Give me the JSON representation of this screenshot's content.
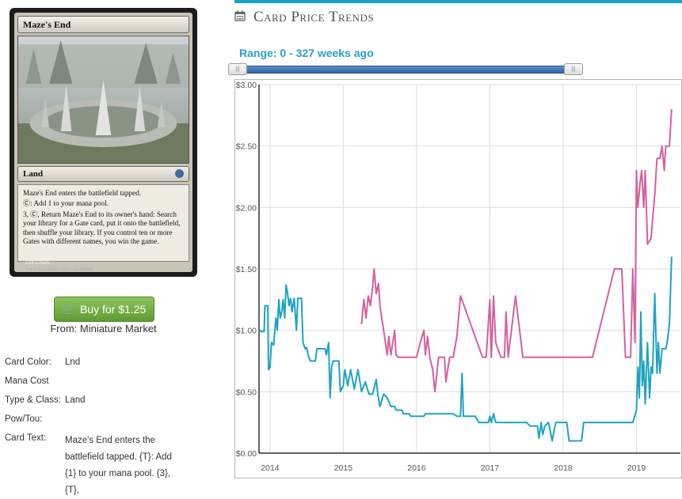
{
  "card": {
    "name": "Maze's End",
    "type_line": "Land",
    "text_lines": [
      "Maze's End enters the battlefield tapped.",
      "Ⓒ: Add 1 to your mana pool.",
      "3, Ⓒ, Return Maze's End to its owner's hand: Search your library for a Gate card, put it onto the battlefield, then shuffle your library. If you control ten or more Gates with different names, you win the game."
    ],
    "artist": "Cliff Childs",
    "copyright": "™ & © 2013 Wizards of the Coast 152/156"
  },
  "buy": {
    "label": "Buy for $1.25",
    "from": "From: Miniature Market"
  },
  "details": [
    {
      "label": "Card Color:",
      "value": "Lnd"
    },
    {
      "label": "Mana Cost",
      "value": ""
    },
    {
      "label": "Type & Class:",
      "value": "Land"
    },
    {
      "label": "Pow/Tou:",
      "value": ""
    },
    {
      "label": "Card Text:",
      "value": "Maze's End enters the battlefield tapped. {T}: Add {1} to your mana pool. {3}, {T},"
    }
  ],
  "panel": {
    "title": "Card Price Trends",
    "range_label": "Range: 0 - 327 weeks ago",
    "slider_left_grip": "|||",
    "slider_right_grip": "|||"
  },
  "colors": {
    "accent": "#19a5c9",
    "pink": "#d4619c",
    "blue": "#1fa3c2",
    "button": "#6fa942"
  },
  "chart_data": {
    "type": "line",
    "title": "",
    "xlabel": "",
    "ylabel": "",
    "xlim": [
      2013.85,
      2019.6
    ],
    "ylim": [
      0,
      3
    ],
    "x_ticks": [
      2014,
      2015,
      2016,
      2017,
      2018,
      2019
    ],
    "x_tick_labels": [
      "2014",
      "2015",
      "2016",
      "2017",
      "2018",
      "2019"
    ],
    "y_ticks": [
      0,
      0.5,
      1,
      1.5,
      2,
      2.5,
      3
    ],
    "y_tick_labels": [
      "$0.00",
      "$0.50",
      "$1.00",
      "$1.50",
      "$2.00",
      "$2.50",
      "$3.00"
    ],
    "grid": true,
    "series": [
      {
        "color": "#1fa3c2",
        "points": [
          [
            2013.86,
            1.0
          ],
          [
            2013.88,
            0.99
          ],
          [
            2013.92,
            0.99
          ],
          [
            2013.93,
            1.2
          ],
          [
            2013.97,
            1.2
          ],
          [
            2013.98,
            0.68
          ],
          [
            2014.0,
            0.7
          ],
          [
            2014.02,
            0.9
          ],
          [
            2014.05,
            0.88
          ],
          [
            2014.08,
            1.1
          ],
          [
            2014.1,
            1.0
          ],
          [
            2014.12,
            1.25
          ],
          [
            2014.14,
            1.1
          ],
          [
            2014.16,
            1.15
          ],
          [
            2014.18,
            1.25
          ],
          [
            2014.2,
            1.1
          ],
          [
            2014.22,
            1.37
          ],
          [
            2014.24,
            1.3
          ],
          [
            2014.26,
            1.2
          ],
          [
            2014.28,
            1.26
          ],
          [
            2014.3,
            1.15
          ],
          [
            2014.33,
            1.26
          ],
          [
            2014.36,
            1.0
          ],
          [
            2014.38,
            1.26
          ],
          [
            2014.43,
            1.26
          ],
          [
            2014.45,
            0.9
          ],
          [
            2014.48,
            0.85
          ],
          [
            2014.5,
            0.86
          ],
          [
            2014.52,
            0.8
          ],
          [
            2014.55,
            0.75
          ],
          [
            2014.62,
            0.75
          ],
          [
            2014.64,
            0.85
          ],
          [
            2014.75,
            0.85
          ],
          [
            2014.77,
            0.8
          ],
          [
            2014.8,
            0.9
          ],
          [
            2014.82,
            0.45
          ],
          [
            2014.84,
            0.7
          ],
          [
            2014.86,
            0.75
          ],
          [
            2014.94,
            0.75
          ],
          [
            2014.96,
            0.5
          ],
          [
            2015.0,
            0.55
          ],
          [
            2015.02,
            0.68
          ],
          [
            2015.06,
            0.55
          ],
          [
            2015.1,
            0.68
          ],
          [
            2015.15,
            0.52
          ],
          [
            2015.2,
            0.68
          ],
          [
            2015.25,
            0.5
          ],
          [
            2015.3,
            0.58
          ],
          [
            2015.35,
            0.48
          ],
          [
            2015.4,
            0.48
          ],
          [
            2015.45,
            0.6
          ],
          [
            2015.47,
            0.48
          ],
          [
            2015.5,
            0.38
          ],
          [
            2015.55,
            0.48
          ],
          [
            2015.6,
            0.45
          ],
          [
            2015.65,
            0.38
          ],
          [
            2015.7,
            0.38
          ],
          [
            2015.72,
            0.35
          ],
          [
            2015.8,
            0.35
          ],
          [
            2015.82,
            0.32
          ],
          [
            2015.9,
            0.32
          ],
          [
            2015.92,
            0.3
          ],
          [
            2016.1,
            0.3
          ],
          [
            2016.12,
            0.32
          ],
          [
            2016.5,
            0.32
          ],
          [
            2016.55,
            0.3
          ],
          [
            2016.6,
            0.3
          ],
          [
            2016.62,
            0.65
          ],
          [
            2016.64,
            0.3
          ],
          [
            2016.8,
            0.3
          ],
          [
            2016.85,
            0.25
          ],
          [
            2016.98,
            0.25
          ],
          [
            2017.0,
            0.3
          ],
          [
            2017.02,
            0.25
          ],
          [
            2017.05,
            0.32
          ],
          [
            2017.08,
            0.25
          ],
          [
            2017.5,
            0.25
          ],
          [
            2017.55,
            0.22
          ],
          [
            2017.65,
            0.22
          ],
          [
            2017.67,
            0.12
          ],
          [
            2017.7,
            0.25
          ],
          [
            2017.72,
            0.15
          ],
          [
            2017.75,
            0.22
          ],
          [
            2017.8,
            0.25
          ],
          [
            2017.85,
            0.1
          ],
          [
            2017.9,
            0.25
          ],
          [
            2018.05,
            0.25
          ],
          [
            2018.08,
            0.1
          ],
          [
            2018.25,
            0.1
          ],
          [
            2018.28,
            0.25
          ],
          [
            2018.95,
            0.25
          ],
          [
            2019.0,
            0.35
          ],
          [
            2019.02,
            0.7
          ],
          [
            2019.04,
            0.45
          ],
          [
            2019.06,
            1.15
          ],
          [
            2019.08,
            0.55
          ],
          [
            2019.1,
            0.75
          ],
          [
            2019.12,
            0.4
          ],
          [
            2019.15,
            0.9
          ],
          [
            2019.18,
            0.45
          ],
          [
            2019.2,
            0.7
          ],
          [
            2019.22,
            0.65
          ],
          [
            2019.25,
            1.3
          ],
          [
            2019.28,
            0.65
          ],
          [
            2019.3,
            0.9
          ],
          [
            2019.32,
            0.65
          ],
          [
            2019.35,
            0.85
          ],
          [
            2019.4,
            0.85
          ],
          [
            2019.42,
            0.9
          ],
          [
            2019.45,
            1.05
          ],
          [
            2019.48,
            1.6
          ]
        ]
      },
      {
        "color": "#d4619c",
        "points": [
          [
            2015.25,
            1.05
          ],
          [
            2015.28,
            1.25
          ],
          [
            2015.31,
            1.1
          ],
          [
            2015.34,
            1.28
          ],
          [
            2015.37,
            1.2
          ],
          [
            2015.4,
            1.35
          ],
          [
            2015.42,
            1.5
          ],
          [
            2015.45,
            1.3
          ],
          [
            2015.48,
            1.38
          ],
          [
            2015.5,
            1.2
          ],
          [
            2015.55,
            1.0
          ],
          [
            2015.6,
            0.8
          ],
          [
            2015.62,
            0.95
          ],
          [
            2015.65,
            0.8
          ],
          [
            2015.7,
            1.0
          ],
          [
            2015.72,
            0.8
          ],
          [
            2015.75,
            0.78
          ],
          [
            2016.0,
            0.78
          ],
          [
            2016.05,
            0.9
          ],
          [
            2016.1,
            1.0
          ],
          [
            2016.12,
            0.8
          ],
          [
            2016.15,
            0.95
          ],
          [
            2016.18,
            0.78
          ],
          [
            2016.22,
            0.68
          ],
          [
            2016.25,
            0.5
          ],
          [
            2016.3,
            0.78
          ],
          [
            2016.38,
            0.78
          ],
          [
            2016.4,
            0.58
          ],
          [
            2016.45,
            0.78
          ],
          [
            2016.5,
            0.78
          ],
          [
            2016.55,
            0.95
          ],
          [
            2016.6,
            1.28
          ],
          [
            2016.9,
            0.78
          ],
          [
            2016.95,
            0.78
          ],
          [
            2017.0,
            1.25
          ],
          [
            2017.02,
            0.78
          ],
          [
            2017.05,
            1.28
          ],
          [
            2017.08,
            0.9
          ],
          [
            2017.15,
            0.78
          ],
          [
            2017.2,
            0.78
          ],
          [
            2017.22,
            1.15
          ],
          [
            2017.25,
            0.78
          ],
          [
            2017.35,
            1.28
          ],
          [
            2017.45,
            0.78
          ],
          [
            2018.4,
            0.78
          ],
          [
            2018.7,
            1.5
          ],
          [
            2018.8,
            1.5
          ],
          [
            2018.85,
            0.78
          ],
          [
            2018.92,
            0.78
          ],
          [
            2018.95,
            1.5
          ],
          [
            2018.98,
            0.9
          ],
          [
            2019.0,
            2.3
          ],
          [
            2019.02,
            2.0
          ],
          [
            2019.05,
            2.2
          ],
          [
            2019.07,
            2.3
          ],
          [
            2019.1,
            2.0
          ],
          [
            2019.12,
            2.3
          ],
          [
            2019.15,
            1.7
          ],
          [
            2019.2,
            1.75
          ],
          [
            2019.22,
            1.9
          ],
          [
            2019.25,
            2.1
          ],
          [
            2019.28,
            2.4
          ],
          [
            2019.32,
            2.4
          ],
          [
            2019.35,
            2.5
          ],
          [
            2019.38,
            2.3
          ],
          [
            2019.4,
            2.5
          ],
          [
            2019.45,
            2.5
          ],
          [
            2019.48,
            2.8
          ]
        ]
      }
    ]
  }
}
